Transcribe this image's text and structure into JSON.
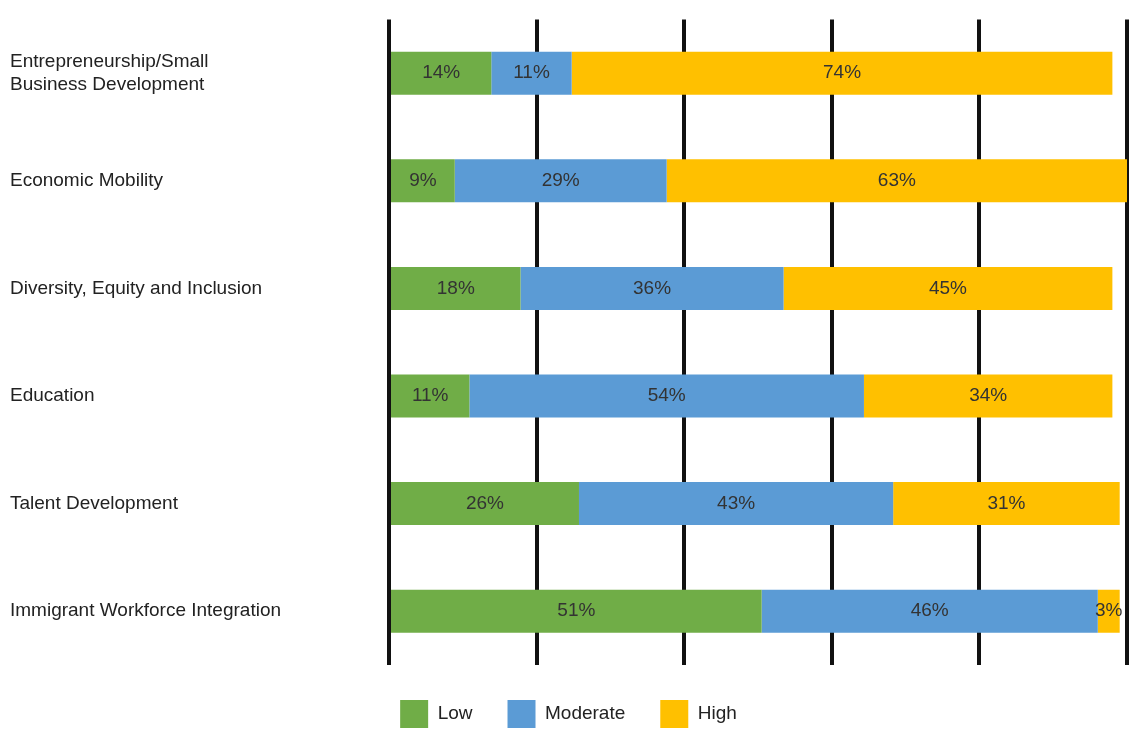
{
  "chart_data": {
    "type": "bar",
    "orientation": "horizontal",
    "stacked": true,
    "categories": [
      "Entrepreneurship/Small Business Development",
      "Economic Mobility",
      "Diversity, Equity and Inclusion",
      "Education",
      "Talent Development",
      "Immigrant Workforce Integration"
    ],
    "series": [
      {
        "name": "Low",
        "color": "#70ad47",
        "values": [
          14,
          9,
          18,
          11,
          26,
          51
        ],
        "value_labels": [
          "14%",
          "9%",
          "18%",
          "11%",
          "26%",
          "51%"
        ]
      },
      {
        "name": "Moderate",
        "color": "#5b9bd5",
        "values": [
          11,
          29,
          36,
          54,
          43,
          46
        ],
        "value_labels": [
          "11%",
          "29%",
          "36%",
          "54%",
          "43%",
          "46%"
        ]
      },
      {
        "name": "High",
        "color": "#ffc000",
        "values": [
          74,
          63,
          45,
          34,
          31,
          3
        ],
        "value_labels": [
          "74%",
          "63%",
          "45%",
          "34%",
          "31%",
          "3%"
        ]
      }
    ],
    "grid": "x",
    "tick_labels": "y",
    "legend": "bottom"
  }
}
